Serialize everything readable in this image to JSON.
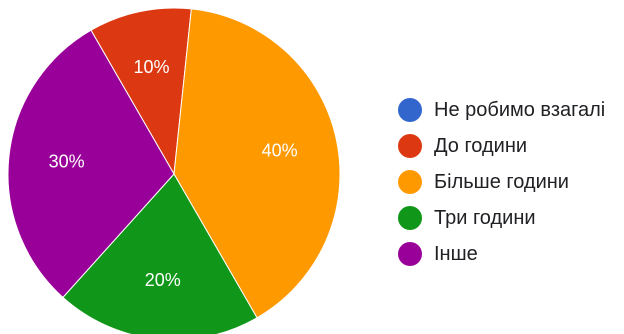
{
  "chart_data": {
    "type": "pie",
    "slices": [
      {
        "name": "Не робимо взагалі",
        "value": 0,
        "label": "",
        "color": "#3366cc"
      },
      {
        "name": "До години",
        "value": 10,
        "label": "10%",
        "color": "#dc3912"
      },
      {
        "name": "Більше години",
        "value": 40,
        "label": "40%",
        "color": "#ff9900"
      },
      {
        "name": "Три години",
        "value": 20,
        "label": "20%",
        "color": "#109618"
      },
      {
        "name": "Інше",
        "value": 30,
        "label": "30%",
        "color": "#990099"
      }
    ],
    "legend_position": "right"
  }
}
